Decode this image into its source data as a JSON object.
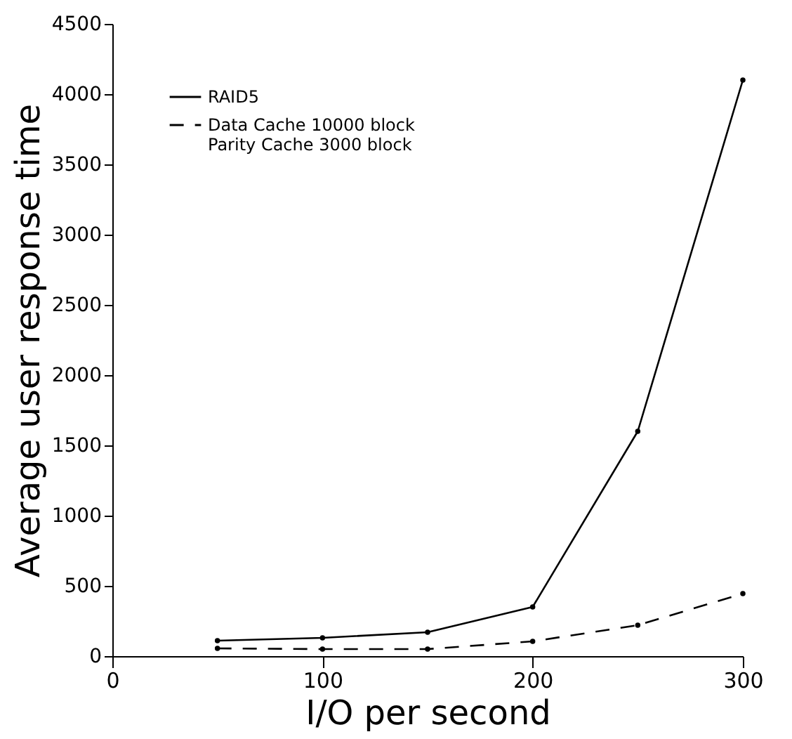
{
  "chart_data": {
    "type": "line",
    "xlabel": "I/O per second",
    "ylabel": "Average user response time",
    "x": [
      50,
      100,
      150,
      200,
      250,
      300
    ],
    "series": [
      {
        "name": "RAID5",
        "color": "#000000",
        "values": [
          110,
          130,
          170,
          350,
          1600,
          4100
        ],
        "line_style": "solid"
      },
      {
        "name": "Data Cache 10000 block\nParity Cache 3000 block",
        "color": "#000000",
        "values": [
          55,
          50,
          50,
          105,
          220,
          445
        ],
        "line_style": "dashed"
      }
    ],
    "xlim": [
      0,
      300
    ],
    "xticks": [
      0,
      100,
      200,
      300
    ],
    "ylim": [
      0,
      4500
    ],
    "yticks": [
      0,
      500,
      1000,
      1500,
      2000,
      2500,
      3000,
      3500,
      4000,
      4500
    ],
    "grid": false,
    "legend": "top left",
    "marker": "circle"
  }
}
